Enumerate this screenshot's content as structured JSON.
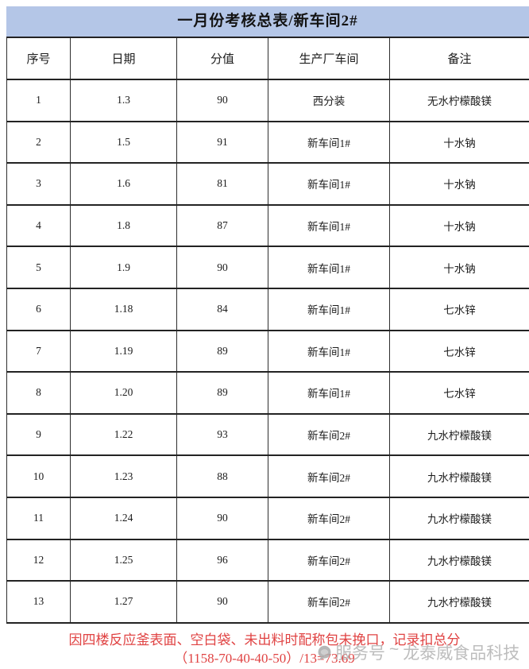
{
  "title": "一月份考核总表/新车间2#",
  "table": {
    "headers": [
      "序号",
      "日期",
      "分值",
      "生产厂车间",
      "备注"
    ],
    "rows": [
      {
        "no": "1",
        "date": "1.3",
        "score": "90",
        "workshop": "西分装",
        "remark": "无水柠檬酸镁"
      },
      {
        "no": "2",
        "date": "1.5",
        "score": "91",
        "workshop": "新车间1#",
        "remark": "十水钠"
      },
      {
        "no": "3",
        "date": "1.6",
        "score": "81",
        "workshop": "新车间1#",
        "remark": "十水钠"
      },
      {
        "no": "4",
        "date": "1.8",
        "score": "87",
        "workshop": "新车间1#",
        "remark": "十水钠"
      },
      {
        "no": "5",
        "date": "1.9",
        "score": "90",
        "workshop": "新车间1#",
        "remark": "十水钠"
      },
      {
        "no": "6",
        "date": "1.18",
        "score": "84",
        "workshop": "新车间1#",
        "remark": "七水锌"
      },
      {
        "no": "7",
        "date": "1.19",
        "score": "89",
        "workshop": "新车间1#",
        "remark": "七水锌"
      },
      {
        "no": "8",
        "date": "1.20",
        "score": "89",
        "workshop": "新车间1#",
        "remark": "七水锌"
      },
      {
        "no": "9",
        "date": "1.22",
        "score": "93",
        "workshop": "新车间2#",
        "remark": "九水柠檬酸镁"
      },
      {
        "no": "10",
        "date": "1.23",
        "score": "88",
        "workshop": "新车间2#",
        "remark": "九水柠檬酸镁"
      },
      {
        "no": "11",
        "date": "1.24",
        "score": "90",
        "workshop": "新车间2#",
        "remark": "九水柠檬酸镁"
      },
      {
        "no": "12",
        "date": "1.25",
        "score": "96",
        "workshop": "新车间2#",
        "remark": "九水柠檬酸镁"
      },
      {
        "no": "13",
        "date": "1.27",
        "score": "90",
        "workshop": "新车间2#",
        "remark": "九水柠檬酸镁"
      }
    ]
  },
  "footer": {
    "line1": "因四楼反应釜表面、空白袋、未出料时配称包未挽口，记录扣总分",
    "line2": "（1158-70-40-40-50）/13=73.69"
  },
  "watermark": {
    "label": "服务号",
    "separator": "~",
    "name": "龙泰威食品科技"
  },
  "colors": {
    "title_background": "#b4c6e7",
    "table_border": "#2e2e2e",
    "footer_red": "#e04343",
    "watermark_gray": "#b5b5b5"
  }
}
